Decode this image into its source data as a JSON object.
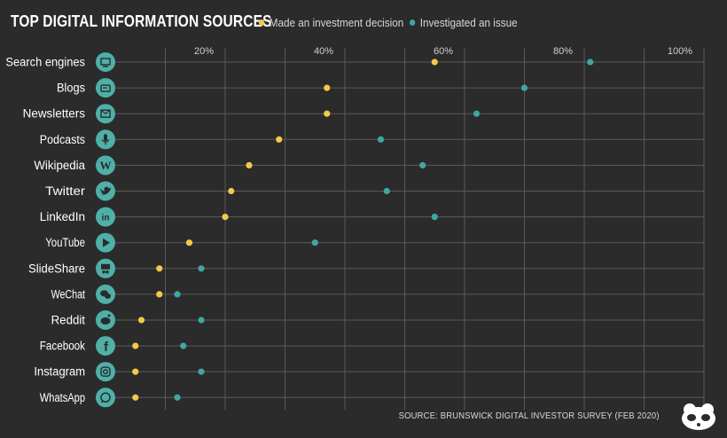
{
  "title": "TOP DIGITAL INFORMATION SOURCES",
  "legend": {
    "invest": "Made an investment decision",
    "issue": "Investigated an issue"
  },
  "source": "SOURCE: BRUNSWICK DIGITAL INVESTOR SURVEY (FEB 2020)",
  "colors": {
    "background": "#2b2b2b",
    "invest": "#f2c94c",
    "issue": "#3fa7a1",
    "icon": "#4fb0a8",
    "grid": "#5a5a5a"
  },
  "chart_data": {
    "type": "scatter",
    "xlim": [
      0,
      100
    ],
    "x_ticks": [
      "20%",
      "40%",
      "60%",
      "80%",
      "100%"
    ],
    "x_tick_values": [
      20,
      40,
      60,
      80,
      100
    ],
    "grid": true,
    "legend_position": "top",
    "categories": [
      "Search engines",
      "Blogs",
      "Newsletters",
      "Podcasts",
      "Wikipedia",
      "Twitter",
      "LinkedIn",
      "YouTube",
      "SlideShare",
      "WeChat",
      "Reddit",
      "Facebook",
      "Instagram",
      "WhatsApp"
    ],
    "icons": [
      "monitor-icon",
      "blog-icon",
      "newsletter-icon",
      "microphone-icon",
      "wikipedia-icon",
      "twitter-icon",
      "linkedin-icon",
      "youtube-icon",
      "slideshare-icon",
      "wechat-icon",
      "reddit-icon",
      "facebook-icon",
      "instagram-icon",
      "whatsapp-icon"
    ],
    "series": [
      {
        "name": "Made an investment decision",
        "values": [
          55,
          37,
          37,
          29,
          24,
          21,
          20,
          14,
          9,
          9,
          6,
          5,
          5,
          5
        ]
      },
      {
        "name": "Investigated an issue",
        "values": [
          81,
          70,
          62,
          46,
          53,
          47,
          55,
          35,
          16,
          12,
          16,
          13,
          16,
          12
        ]
      }
    ]
  }
}
